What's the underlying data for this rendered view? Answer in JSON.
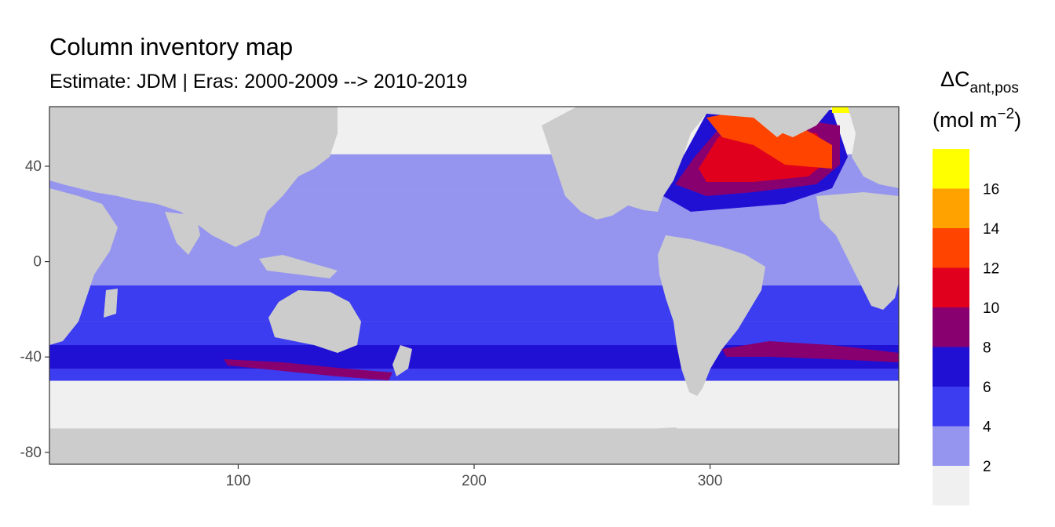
{
  "chart_data": {
    "type": "heatmap",
    "title": "Column inventory map",
    "subtitle": "Estimate: JDM  | Eras: 2000-2009 --> 2010-2019",
    "x_ticks": [
      100,
      200,
      300
    ],
    "y_ticks": [
      40,
      0,
      -40,
      -80
    ],
    "xlim": [
      20,
      380
    ],
    "ylim": [
      -85,
      65
    ],
    "legend": {
      "title_main": "ΔC",
      "title_sub": "ant,pos",
      "unit_open": "(mol m",
      "unit_sup": "−2",
      "unit_close": ")",
      "breaks": [
        2,
        4,
        6,
        8,
        10,
        12,
        14,
        16
      ],
      "colors": [
        "#f0f0f0",
        "#9595f0",
        "#3c3cf0",
        "#2010d4",
        "#880070",
        "#e0001e",
        "#ff4400",
        "#ffa200",
        "#ffff00"
      ],
      "position": "right"
    },
    "land_color": "#cccccc",
    "panel_border": "#333333"
  }
}
